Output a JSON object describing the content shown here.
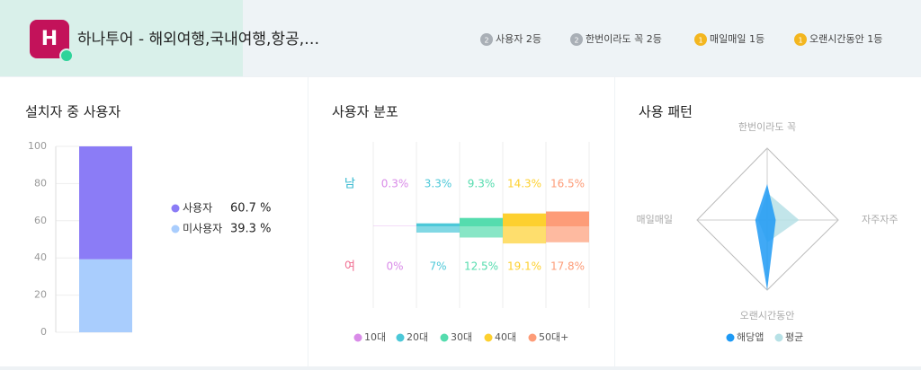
{
  "header": {
    "app_name": "하나투어 - 해외여행,국내여행,항공,…",
    "icon_letter": "H",
    "badges": [
      {
        "medal": "2",
        "label": "사용자 2등",
        "color": "#a9afb6"
      },
      {
        "medal": "2",
        "label": "한번이라도 꼭 2등",
        "color": "#a9afb6"
      },
      {
        "medal": "1",
        "label": "매일매일 1등",
        "color": "#f3b61f"
      },
      {
        "medal": "1",
        "label": "오랜시간동안 1등",
        "color": "#f3b61f"
      }
    ]
  },
  "chart_data": [
    {
      "type": "stacked_bar",
      "title": "설치자 중 사용자",
      "ylim": [
        0,
        100
      ],
      "yticks": [
        0,
        20,
        40,
        60,
        80,
        100
      ],
      "grid": true,
      "series": [
        {
          "name": "사용자",
          "color": "#8b7cf6",
          "values": [
            60.7
          ],
          "value_labels": [
            "60.7 %"
          ]
        },
        {
          "name": "미사용자",
          "color": "#a9cdfd",
          "values": [
            39.3
          ],
          "value_labels": [
            "39.3 %"
          ]
        }
      ]
    },
    {
      "type": "diverging_bar",
      "title": "사용자 분포",
      "categories": [
        "10대",
        "20대",
        "30대",
        "40대",
        "50대+"
      ],
      "colors": [
        "#d98be8",
        "#4cc8d8",
        "#55dcae",
        "#fdd02f",
        "#fd9c78"
      ],
      "series": [
        {
          "name": "남",
          "color": "#2bb5cd",
          "values": [
            0.3,
            3.3,
            9.3,
            14.3,
            16.5
          ],
          "value_labels": [
            "0.3%",
            "3.3%",
            "9.3%",
            "14.3%",
            "16.5%"
          ]
        },
        {
          "name": "여",
          "color": "#f06b8f",
          "values": [
            0,
            7,
            12.5,
            19.1,
            17.8
          ],
          "value_labels": [
            "0%",
            "7%",
            "12.5%",
            "19.1%",
            "17.8%"
          ]
        }
      ]
    },
    {
      "type": "radar",
      "title": "사용 패턴",
      "categories": [
        "한번이라도 꼭",
        "자주자주",
        "오랜시간동안",
        "매일매일"
      ],
      "rlim": [
        0,
        100
      ],
      "series": [
        {
          "name": "해당앱",
          "color": "#1e9af5",
          "values": [
            50,
            12,
            100,
            17
          ]
        },
        {
          "name": "평균",
          "color": "#b7e1e6",
          "values": [
            38,
            45,
            32,
            13
          ]
        }
      ]
    }
  ]
}
